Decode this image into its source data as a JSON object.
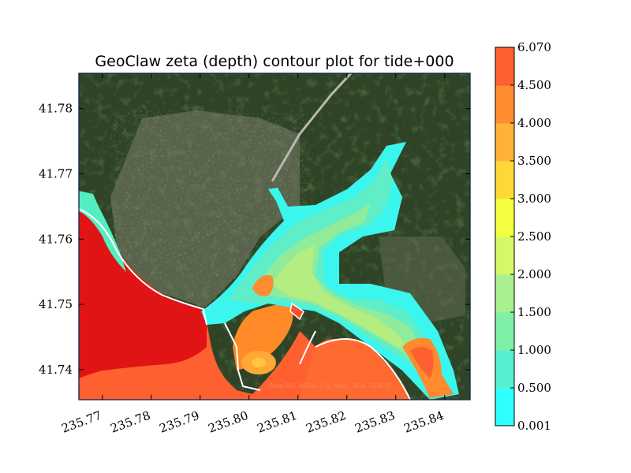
{
  "chart_data": {
    "type": "heatmap",
    "title": "GeoClaw zeta (depth) contour plot for tide+000",
    "xlabel": "",
    "ylabel": "",
    "xlim": [
      235.7652,
      235.8452
    ],
    "ylim": [
      41.7354,
      41.7854
    ],
    "x_ticks": [
      {
        "value": 235.77,
        "label": "235.77"
      },
      {
        "value": 235.78,
        "label": "235.78"
      },
      {
        "value": 235.79,
        "label": "235.79"
      },
      {
        "value": 235.8,
        "label": "235.80"
      },
      {
        "value": 235.81,
        "label": "235.81"
      },
      {
        "value": 235.82,
        "label": "235.82"
      },
      {
        "value": 235.83,
        "label": "235.83"
      },
      {
        "value": 235.84,
        "label": "235.84"
      }
    ],
    "y_ticks": [
      {
        "value": 41.74,
        "label": "41.74"
      },
      {
        "value": 41.75,
        "label": "41.75"
      },
      {
        "value": 41.76,
        "label": "41.76"
      },
      {
        "value": 41.77,
        "label": "41.77"
      },
      {
        "value": 41.78,
        "label": "41.78"
      }
    ],
    "attribution": "Data SIO, NOAA, U.S. Navy, NGA, GEBCO",
    "colorbar": {
      "levels": [
        {
          "value": 0.001,
          "label": "0.001",
          "color": "#2effff"
        },
        {
          "value": 0.5,
          "label": "0.500",
          "color": "#55f0d0"
        },
        {
          "value": 1.0,
          "label": "1.000",
          "color": "#80f0a8"
        },
        {
          "value": 1.5,
          "label": "1.500",
          "color": "#a8f090"
        },
        {
          "value": 2.0,
          "label": "2.000",
          "color": "#d4f868"
        },
        {
          "value": 2.5,
          "label": "2.500",
          "color": "#f4ff40"
        },
        {
          "value": 3.0,
          "label": "3.000",
          "color": "#ffd838"
        },
        {
          "value": 3.5,
          "label": "3.500",
          "color": "#ffb238"
        },
        {
          "value": 4.0,
          "label": "4.000",
          "color": "#ff8c30"
        },
        {
          "value": 4.5,
          "label": "4.500",
          "color": "#ff6030"
        },
        {
          "value": 6.07,
          "label": "6.070",
          "color": "#ff3030"
        }
      ]
    }
  }
}
